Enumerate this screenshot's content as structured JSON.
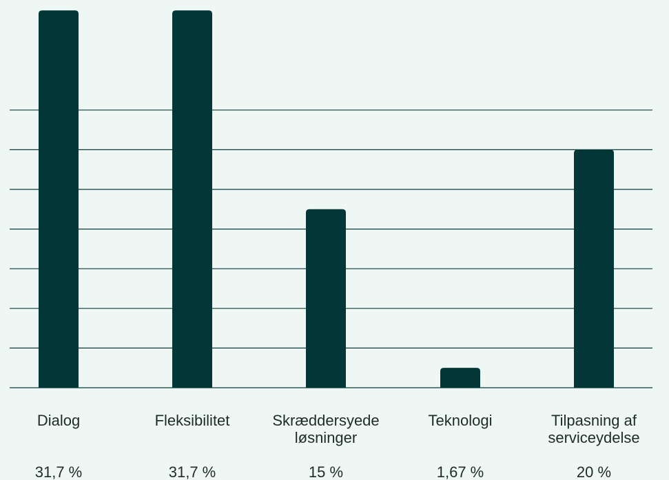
{
  "colors": {
    "background": "#eef7f4",
    "bar": "#033737",
    "gridline": "#0a3a3a",
    "text": "#1f2b2a"
  },
  "chart_data": {
    "type": "bar",
    "categories": [
      "Dialog",
      "Fleksibilitet",
      "Skræddersyede løsninger",
      "Teknologi",
      "Tilpasning af serviceydelse"
    ],
    "category_labels": [
      [
        "Dialog"
      ],
      [
        "Fleksibilitet"
      ],
      [
        "Skræddersyede",
        "løsninger"
      ],
      [
        "Teknologi"
      ],
      [
        "Tilpasning af",
        "serviceydelse"
      ]
    ],
    "values": [
      31.7,
      31.7,
      15,
      1.67,
      20
    ],
    "value_labels": [
      "31,7 %",
      "31,7 %",
      "15 %",
      "1,67 %",
      "20 %"
    ],
    "title": "",
    "xlabel": "",
    "ylabel": "",
    "ylim": [
      0,
      26.67
    ],
    "grid": true,
    "legend": "none"
  }
}
